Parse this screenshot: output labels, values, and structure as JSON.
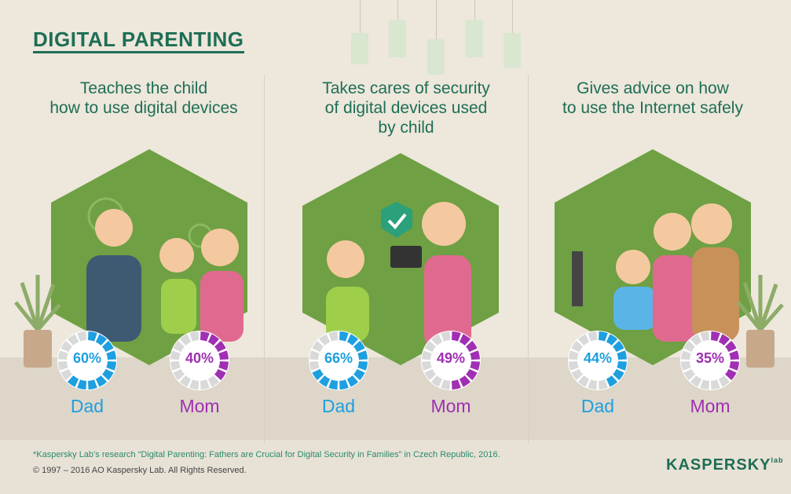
{
  "title": "DIGITAL PARENTING",
  "colors": {
    "green": "#1e6e55",
    "dad": "#1d9fe0",
    "mom": "#a02fb3",
    "hex": "#6fa043"
  },
  "sections": [
    {
      "heading": [
        "Teaches the child",
        "how to use digital devices"
      ],
      "dad": {
        "value": 60,
        "label": "60%",
        "name": "Dad"
      },
      "mom": {
        "value": 40,
        "label": "40%",
        "name": "Mom"
      }
    },
    {
      "heading": [
        "Takes cares of security",
        "of digital devices used",
        "by child"
      ],
      "dad": {
        "value": 66,
        "label": "66%",
        "name": "Dad"
      },
      "mom": {
        "value": 49,
        "label": "49%",
        "name": "Mom"
      }
    },
    {
      "heading": [
        "Gives advice on how",
        "to use the Internet safely"
      ],
      "dad": {
        "value": 44,
        "label": "44%",
        "name": "Dad"
      },
      "mom": {
        "value": 35,
        "label": "35%",
        "name": "Mom"
      }
    }
  ],
  "footnote": "*Kaspersky Lab’s research “Digital Parenting: Fathers are Crucial for Digital Security in Families” in Czech Republic, 2016.",
  "copyright": "© 1997 – 2016 AO Kaspersky Lab. All Rights Reserved.",
  "logo": {
    "text": "KASPERSKY",
    "suffix": "lab"
  }
}
